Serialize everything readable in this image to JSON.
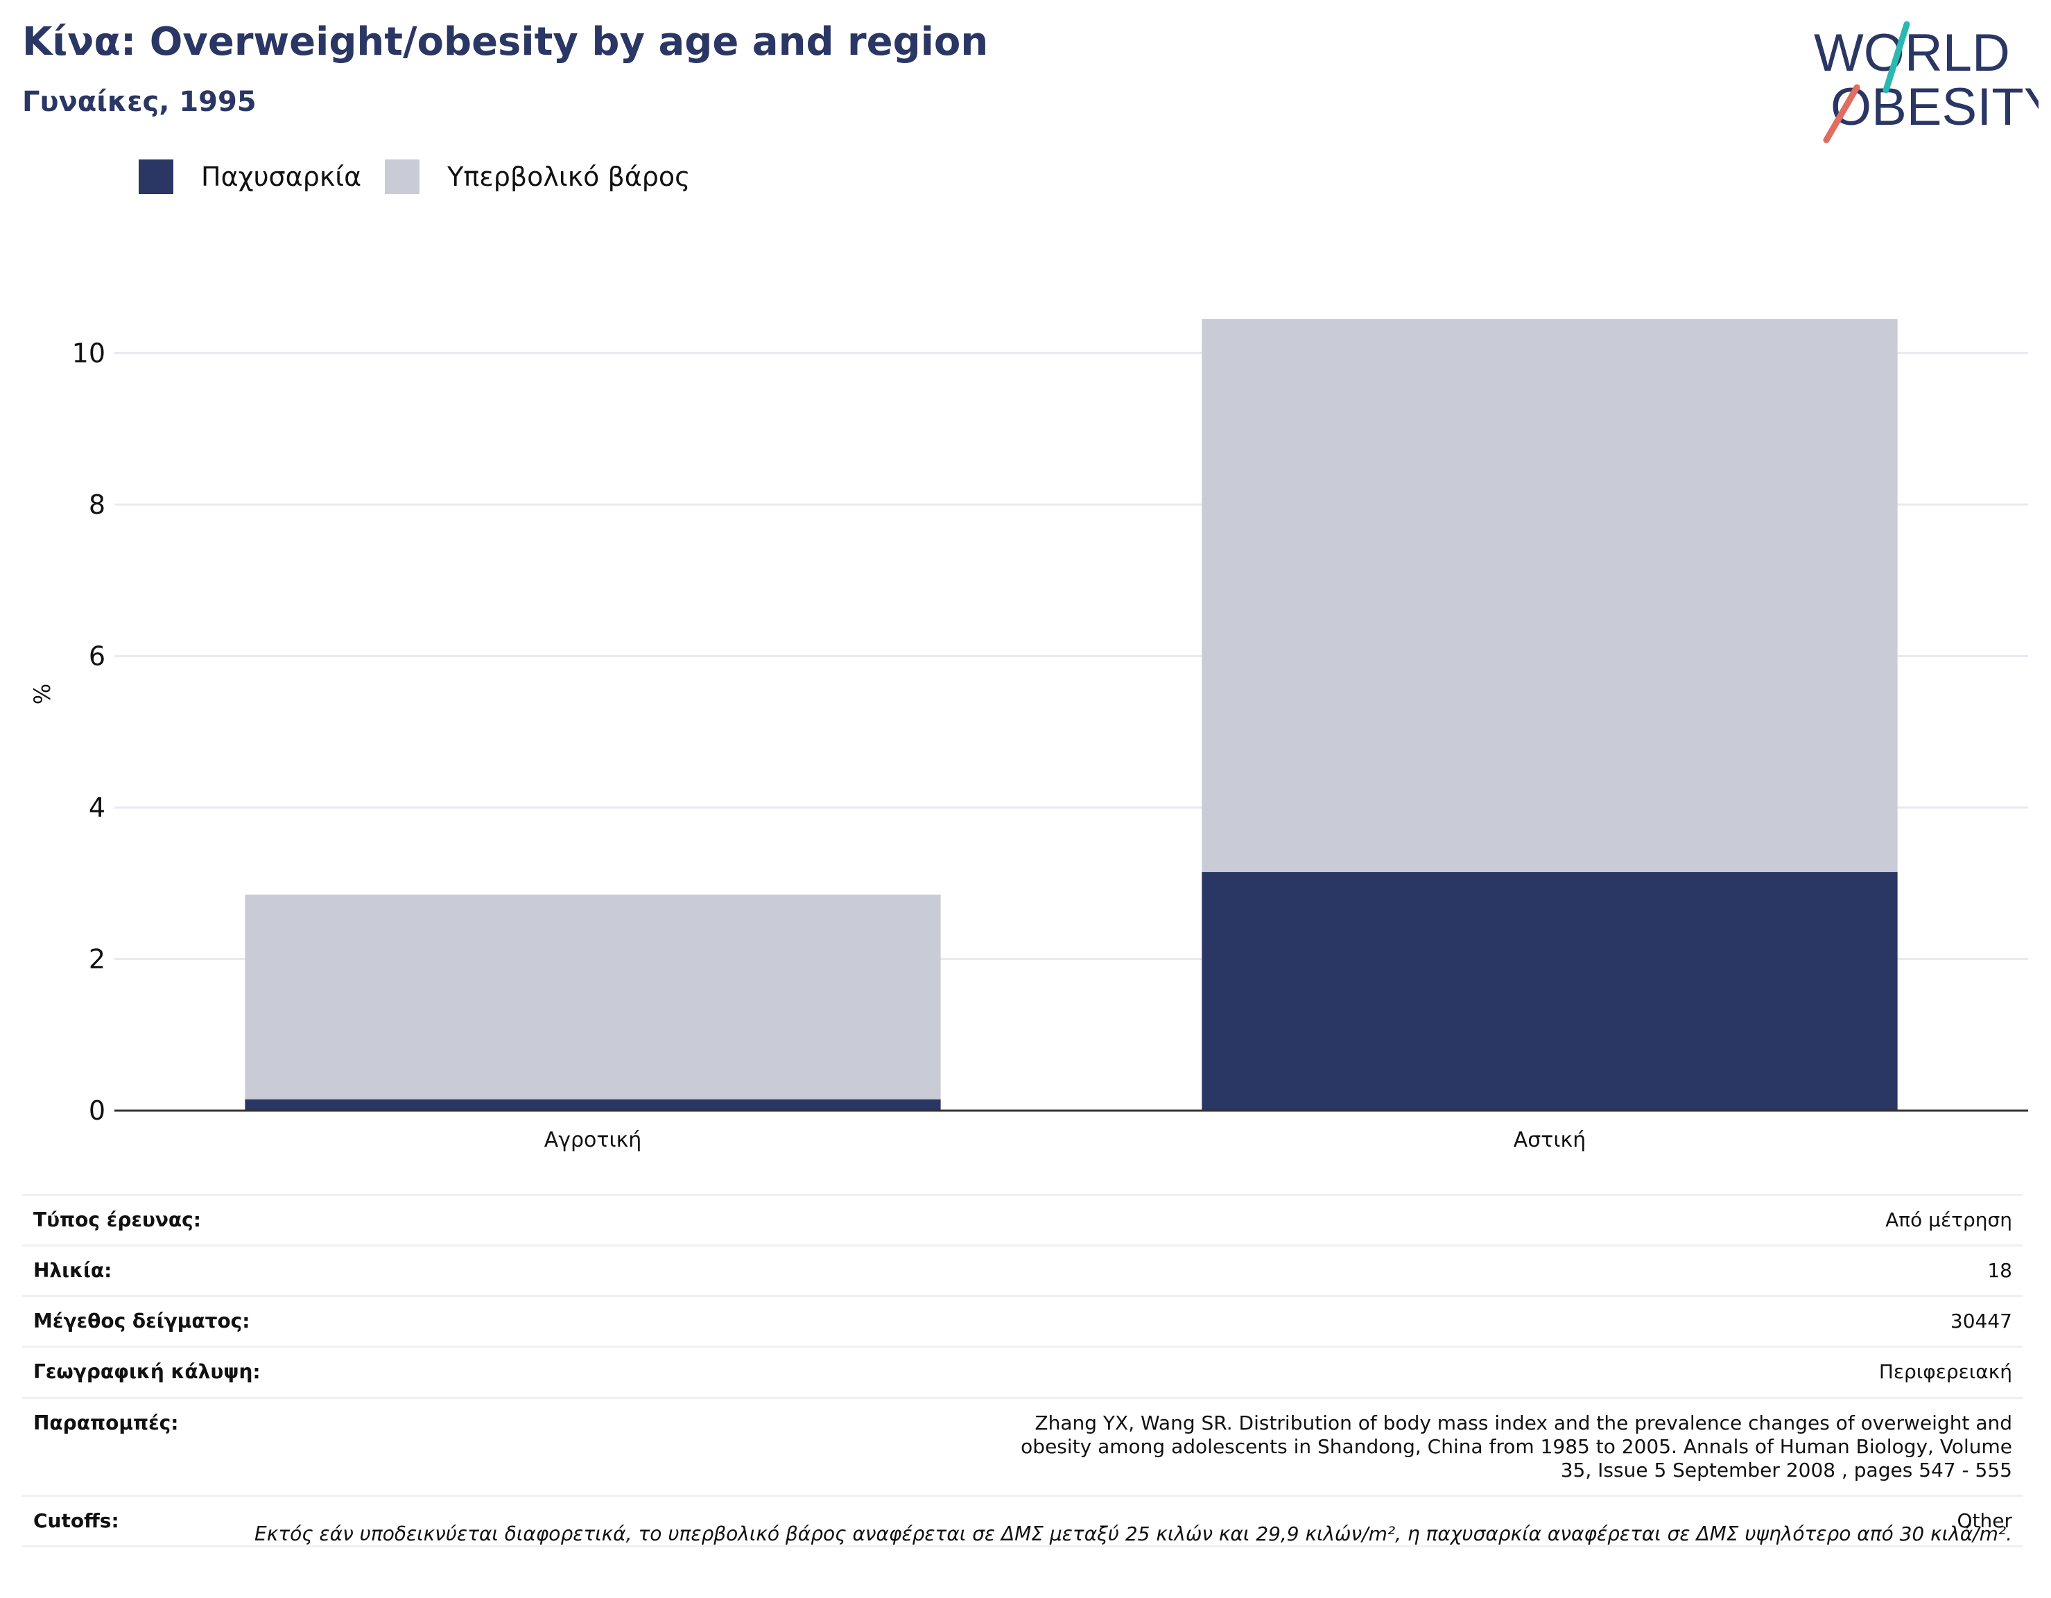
{
  "header": {
    "title": "Κίνα: Overweight/obesity by age and region",
    "subtitle": "Γυναίκες, 1995"
  },
  "logo": {
    "line1": "WORLD",
    "line2": "OBESITY"
  },
  "legend": [
    {
      "label": "Παχυσαρκία",
      "color": "#2a3663"
    },
    {
      "label": "Υπερβολικό βάρος",
      "color": "#c9cbd7"
    }
  ],
  "chart_data": {
    "type": "bar",
    "stacked": true,
    "title": "Κίνα: Overweight/obesity by age and region",
    "subtitle": "Γυναίκες, 1995",
    "xlabel": "",
    "ylabel": "%",
    "categories": [
      "Αγροτική",
      "Αστική"
    ],
    "series": [
      {
        "name": "Παχυσαρκία",
        "color": "#2a3663",
        "values": [
          0.15,
          3.15
        ]
      },
      {
        "name": "Υπερβολικό βάρος",
        "color": "#c9cbd7",
        "values": [
          2.7,
          7.3
        ]
      }
    ],
    "ylim": [
      0,
      11
    ],
    "yticks": [
      0,
      2,
      4,
      6,
      8,
      10
    ],
    "grid": true,
    "legend_position": "top-left"
  },
  "info": [
    {
      "label": "Τύπος έρευνας:",
      "value": "Από μέτρηση"
    },
    {
      "label": "Ηλικία:",
      "value": "18"
    },
    {
      "label": "Μέγεθος δείγματος:",
      "value": "30447"
    },
    {
      "label": "Γεωγραφική κάλυψη:",
      "value": "Περιφερειακή"
    },
    {
      "label": "Παραπομπές:",
      "value": "Zhang YX, Wang SR. Distribution of body mass index and the prevalence changes of overweight and obesity among adolescents in Shandong, China from 1985 to 2005. Annals of Human Biology, Volume 35, Issue 5 September 2008 , pages 547 - 555"
    },
    {
      "label": "Cutoffs:",
      "value": "Other"
    }
  ],
  "footnote": "Εκτός εάν υποδεικνύεται διαφορετικά, το υπερβολικό βάρος αναφέρεται σε ΔΜΣ μεταξύ 25 κιλών και 29,9 κιλών/m², η παχυσαρκία αναφέρεται σε ΔΜΣ υψηλότερο από 30 κιλά/m²."
}
